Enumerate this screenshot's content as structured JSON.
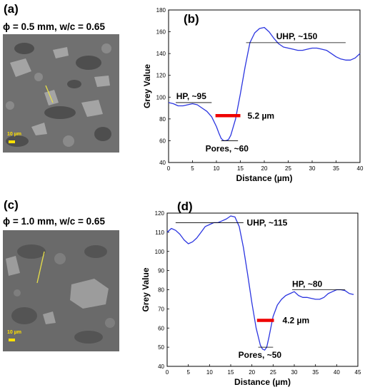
{
  "panels": {
    "a": {
      "letter": "(a)",
      "label": "ϕ = 0.5 mm, w/c = 0.65",
      "scale": "10 µm"
    },
    "c": {
      "letter": "(c)",
      "label": "ϕ = 1.0 mm, w/c = 0.65",
      "scale": "10 µm"
    }
  },
  "colors": {
    "curve": "#2b35e0",
    "marker": "#ee0000",
    "scale_bar": "#ffe000",
    "profile_line": "#e8e048"
  },
  "chart_data": [
    {
      "type": "line",
      "panel": "(b)",
      "xlabel": "Distance (µm)",
      "ylabel": "Grey Value",
      "xlim": [
        0,
        40
      ],
      "ylim": [
        40,
        180
      ],
      "xticks": [
        0,
        5,
        10,
        15,
        20,
        25,
        30,
        35,
        40
      ],
      "yticks": [
        40,
        60,
        80,
        100,
        120,
        140,
        160,
        180
      ],
      "series": [
        {
          "x": [
            0,
            1,
            2,
            3,
            4,
            5,
            6,
            7,
            8,
            9,
            10,
            10.5,
            11,
            11.5,
            12,
            12.5,
            13,
            14,
            15,
            16,
            17,
            18,
            19,
            20,
            21,
            22,
            23,
            24,
            25,
            26,
            27,
            28,
            29,
            30,
            31,
            32,
            33,
            34,
            35,
            36,
            37,
            38,
            39,
            40
          ],
          "y": [
            95,
            94,
            92,
            92,
            93,
            94,
            93,
            90,
            87,
            82,
            73,
            67,
            62,
            60,
            60,
            61,
            65,
            80,
            103,
            128,
            150,
            159,
            163,
            164,
            160,
            154,
            149,
            146,
            145,
            144,
            143,
            143,
            144,
            145,
            145,
            144,
            143,
            140,
            137,
            135,
            134,
            134,
            136,
            140
          ]
        }
      ],
      "reference_lines": [
        {
          "label": "UHP, ~150",
          "y": 150,
          "x": [
            16.2,
            37
          ]
        },
        {
          "label": "HP, ~95",
          "y": 95,
          "x": [
            1.5,
            9
          ]
        },
        {
          "label": "Pores, ~60",
          "y": 60,
          "x": [
            11,
            14.5
          ]
        }
      ],
      "marker": {
        "label": "5.2 µm",
        "y": 83,
        "x": [
          9.8,
          15.0
        ]
      }
    },
    {
      "type": "line",
      "panel": "(d)",
      "xlabel": "Distance (µm)",
      "ylabel": "Grey Value",
      "xlim": [
        0,
        45
      ],
      "ylim": [
        40,
        120
      ],
      "xticks": [
        0,
        5,
        10,
        15,
        20,
        25,
        30,
        35,
        40,
        45
      ],
      "yticks": [
        40,
        50,
        60,
        70,
        80,
        90,
        100,
        110,
        120
      ],
      "series": [
        {
          "x": [
            0,
            1,
            2,
            3,
            4,
            5,
            6,
            7,
            8,
            9,
            10,
            11,
            12,
            13,
            14,
            15,
            16,
            17,
            18,
            19,
            20,
            21,
            22,
            22.5,
            23,
            23.5,
            24,
            25,
            26,
            27,
            28,
            29,
            30,
            31,
            32,
            33,
            34,
            35,
            36,
            37,
            38,
            39,
            40,
            41,
            42,
            43,
            44
          ],
          "y": [
            110,
            112,
            111,
            109,
            106,
            104,
            105,
            107,
            110,
            113,
            114,
            115,
            115,
            116,
            117,
            118.5,
            118,
            113,
            102,
            88,
            73,
            60,
            51,
            49,
            48.5,
            50,
            55,
            66,
            72,
            75,
            77,
            78,
            79,
            77,
            76,
            76,
            75.5,
            75,
            75,
            76,
            78,
            79,
            80,
            80,
            79.5,
            78,
            77.5
          ]
        }
      ],
      "reference_lines": [
        {
          "label": "UHP, ~115",
          "y": 115,
          "x": [
            2,
            18
          ]
        },
        {
          "label": "HP, ~80",
          "y": 80,
          "x": [
            29.5,
            42
          ]
        },
        {
          "label": "Pores, ~50",
          "y": 50,
          "x": [
            21.5,
            25
          ]
        }
      ],
      "marker": {
        "label": "4.2 µm",
        "y": 64,
        "x": [
          21.2,
          25.2
        ]
      }
    }
  ]
}
